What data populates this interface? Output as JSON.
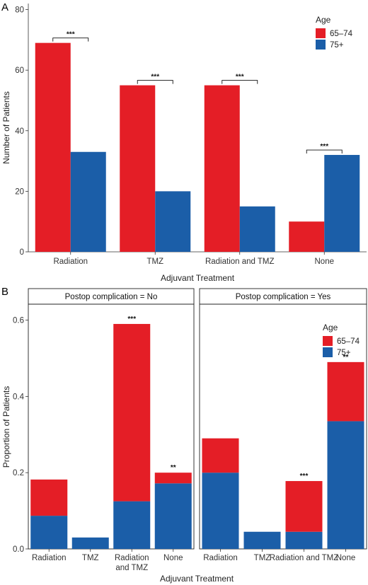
{
  "colors": {
    "age_65_74": "#e41e26",
    "age_75_plus": "#1b5ea8"
  },
  "chart_data": [
    {
      "panel": "A",
      "type": "bar",
      "ylabel": "Number of Patients",
      "xlabel": "Adjuvant Treatment",
      "ylim": [
        0,
        82
      ],
      "yticks": [
        "0",
        "20",
        "40",
        "60",
        "80"
      ],
      "ytick_values": [
        0,
        20,
        40,
        60,
        80
      ],
      "categories": [
        "Radiation",
        "TMZ",
        "Radiation and TMZ",
        "None"
      ],
      "legend_title": "Age",
      "legend_position": "top-right",
      "series": [
        {
          "name": "65–74",
          "values": [
            69,
            55,
            55,
            10
          ]
        },
        {
          "name": "75+",
          "values": [
            33,
            20,
            15,
            32
          ]
        }
      ],
      "significance": [
        "***",
        "***",
        "***",
        "***"
      ]
    },
    {
      "panel": "B",
      "type": "bar",
      "stacked": true,
      "ylabel": "Proportion of Patients",
      "xlabel": "Adjuvant Treatment",
      "ylim": [
        0,
        0.64
      ],
      "yticks": [
        "0.0",
        "0.2",
        "0.4",
        "0.6"
      ],
      "ytick_values": [
        0,
        0.2,
        0.4,
        0.6
      ],
      "categories": [
        [
          "Radiation"
        ],
        [
          "TMZ"
        ],
        [
          "Radiation",
          "and TMZ"
        ],
        [
          "None"
        ]
      ],
      "legend_title": "Age",
      "legend_position": "top-right",
      "facets": [
        {
          "strip": "Postop complication = No",
          "totals": [
            0.182,
            0.03,
            0.59,
            0.2
          ],
          "series": [
            {
              "name": "75+",
              "values": [
                0.087,
                0.03,
                0.125,
                0.172
              ]
            },
            {
              "name": "65–74",
              "values": [
                0.095,
                0.0,
                0.465,
                0.028
              ]
            }
          ],
          "significance": [
            "",
            "",
            "***",
            "**"
          ]
        },
        {
          "strip": "Postop complication = Yes",
          "categories": [
            "Radiation",
            "TMZ",
            "Radiation and TMZ",
            "None"
          ],
          "totals": [
            0.29,
            0.045,
            0.178,
            0.49
          ],
          "series": [
            {
              "name": "75+",
              "values": [
                0.2,
                0.045,
                0.045,
                0.335
              ]
            },
            {
              "name": "65–74",
              "values": [
                0.09,
                0.0,
                0.133,
                0.155
              ]
            }
          ],
          "significance": [
            "",
            "",
            "***",
            "**"
          ]
        }
      ]
    }
  ]
}
